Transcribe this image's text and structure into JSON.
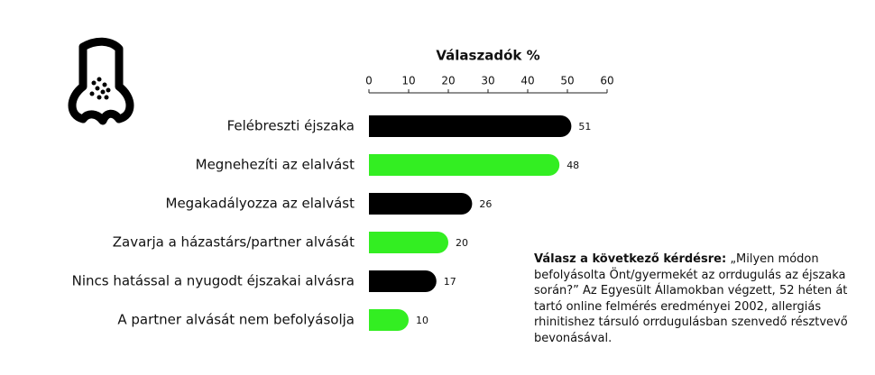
{
  "chart_data": {
    "type": "hbar",
    "x_axis_title": "Válaszadók %",
    "categories": [
      "Felébreszti éjszaka",
      "Megnehezíti az elalvást",
      "Megakadályozza az elalvást",
      "Zavarja a házastárs/partner alvását",
      "Nincs hatással a nyugodt éjszakai alvásra",
      "A partner alvását nem befolyásolja"
    ],
    "values": [
      51,
      48,
      26,
      20,
      17,
      10
    ],
    "colors": [
      "#000000",
      "#33ee22",
      "#000000",
      "#33ee22",
      "#000000",
      "#33ee22"
    ],
    "xlim": [
      0,
      60
    ],
    "xticks": [
      0,
      10,
      20,
      30,
      40,
      50,
      60
    ],
    "annotation": {
      "label": "Válasz a következő kérdésre:",
      "text": "„Milyen módon befolyásolta Önt/gyermekét az orrdugulás az éjszaka során?” Az Egyesült Államokban végzett, 52 héten át tartó online felmérés eredményei 2002, allergiás rhinitishez társuló orrdugulásban szenvedő résztvevő bevonásával."
    }
  }
}
